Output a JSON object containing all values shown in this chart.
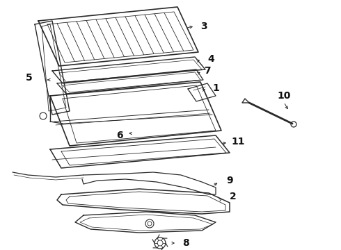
{
  "bg_color": "#ffffff",
  "line_color": "#2a2a2a",
  "label_color": "#111111",
  "label_fontsize": 10,
  "fig_width": 4.9,
  "fig_height": 3.6,
  "dpi": 100
}
